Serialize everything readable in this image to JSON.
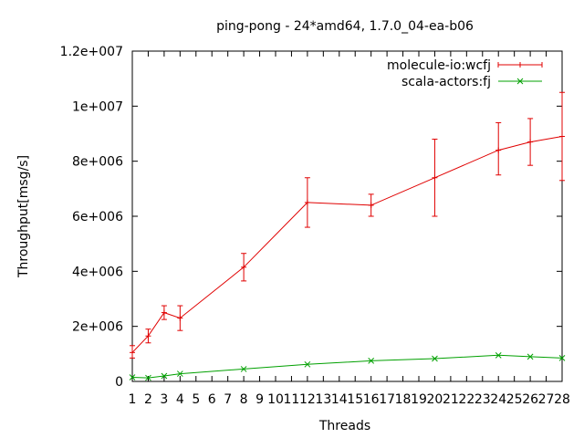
{
  "chart_data": {
    "type": "line",
    "title": "ping-pong - 24*amd64, 1.7.0_04-ea-b06",
    "xlabel": "Threads",
    "ylabel": "Throughput[msg/s]",
    "xlim": [
      1,
      28
    ],
    "ylim": [
      0,
      12000000
    ],
    "x_ticks": [
      1,
      2,
      3,
      4,
      5,
      6,
      7,
      8,
      9,
      10,
      11,
      12,
      13,
      14,
      15,
      16,
      17,
      18,
      19,
      20,
      21,
      22,
      23,
      24,
      25,
      26,
      27,
      28
    ],
    "x_tick_labels": [
      "1",
      "2",
      "3",
      "4",
      "5",
      "6",
      "7",
      "8",
      "9",
      "10",
      "11",
      "12",
      "13",
      "14",
      "15",
      "16",
      "17",
      "18",
      "19",
      "20",
      "21",
      "22",
      "23",
      "24",
      "25",
      "26",
      "27",
      "28"
    ],
    "y_ticks": [
      0,
      2000000,
      4000000,
      6000000,
      8000000,
      10000000,
      12000000
    ],
    "y_tick_labels": [
      "0",
      "2e+006",
      "4e+006",
      "6e+006",
      "8e+006",
      "1e+007",
      "1.2e+007"
    ],
    "grid": false,
    "legend_position": "top-right",
    "series": [
      {
        "name": "molecule-io:wcfj",
        "color": "#e00000",
        "marker": "plus",
        "x": [
          1,
          2,
          3,
          4,
          8,
          12,
          16,
          20,
          24,
          26,
          28
        ],
        "y": [
          1050000,
          1650000,
          2500000,
          2300000,
          4150000,
          6500000,
          6400000,
          7400000,
          8400000,
          8700000,
          8900000
        ],
        "error_low": [
          850000,
          1400000,
          2250000,
          1850000,
          3650000,
          5600000,
          6000000,
          6000000,
          7500000,
          7850000,
          7300000
        ],
        "error_high": [
          1300000,
          1900000,
          2750000,
          2750000,
          4650000,
          7400000,
          6800000,
          8800000,
          9400000,
          9550000,
          10500000
        ]
      },
      {
        "name": "scala-actors:fj",
        "color": "#00a000",
        "marker": "x",
        "x": [
          1,
          2,
          3,
          4,
          8,
          12,
          16,
          20,
          24,
          26,
          28
        ],
        "y": [
          150000,
          130000,
          200000,
          280000,
          450000,
          620000,
          750000,
          830000,
          950000,
          900000,
          850000
        ]
      }
    ]
  }
}
